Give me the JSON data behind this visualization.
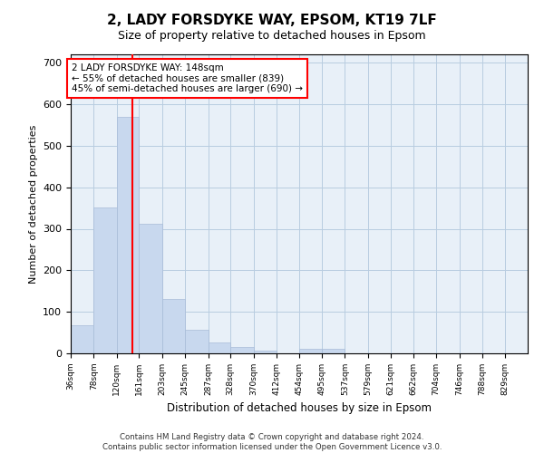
{
  "title": "2, LADY FORSDYKE WAY, EPSOM, KT19 7LF",
  "subtitle": "Size of property relative to detached houses in Epsom",
  "xlabel": "Distribution of detached houses by size in Epsom",
  "ylabel": "Number of detached properties",
  "bar_color": "#c8d8ee",
  "bar_edge_color": "#a8bcd8",
  "grid_color": "#b8cce0",
  "background_color": "#e8f0f8",
  "vline_value": 148,
  "vline_color": "red",
  "annotation_text": "2 LADY FORSDYKE WAY: 148sqm\n← 55% of detached houses are smaller (839)\n45% of semi-detached houses are larger (690) →",
  "annotation_box_color": "white",
  "annotation_box_edge": "red",
  "footer_text": "Contains HM Land Registry data © Crown copyright and database right 2024.\nContains public sector information licensed under the Open Government Licence v3.0.",
  "bin_edges": [
    36,
    78,
    120,
    161,
    203,
    245,
    287,
    328,
    370,
    412,
    454,
    495,
    537,
    579,
    621,
    662,
    704,
    746,
    788,
    829,
    871
  ],
  "bar_heights": [
    68,
    352,
    570,
    312,
    131,
    57,
    27,
    16,
    7,
    0,
    10,
    10,
    0,
    0,
    0,
    0,
    0,
    0,
    0,
    0
  ],
  "ylim": [
    0,
    720
  ],
  "yticks": [
    0,
    100,
    200,
    300,
    400,
    500,
    600,
    700
  ]
}
